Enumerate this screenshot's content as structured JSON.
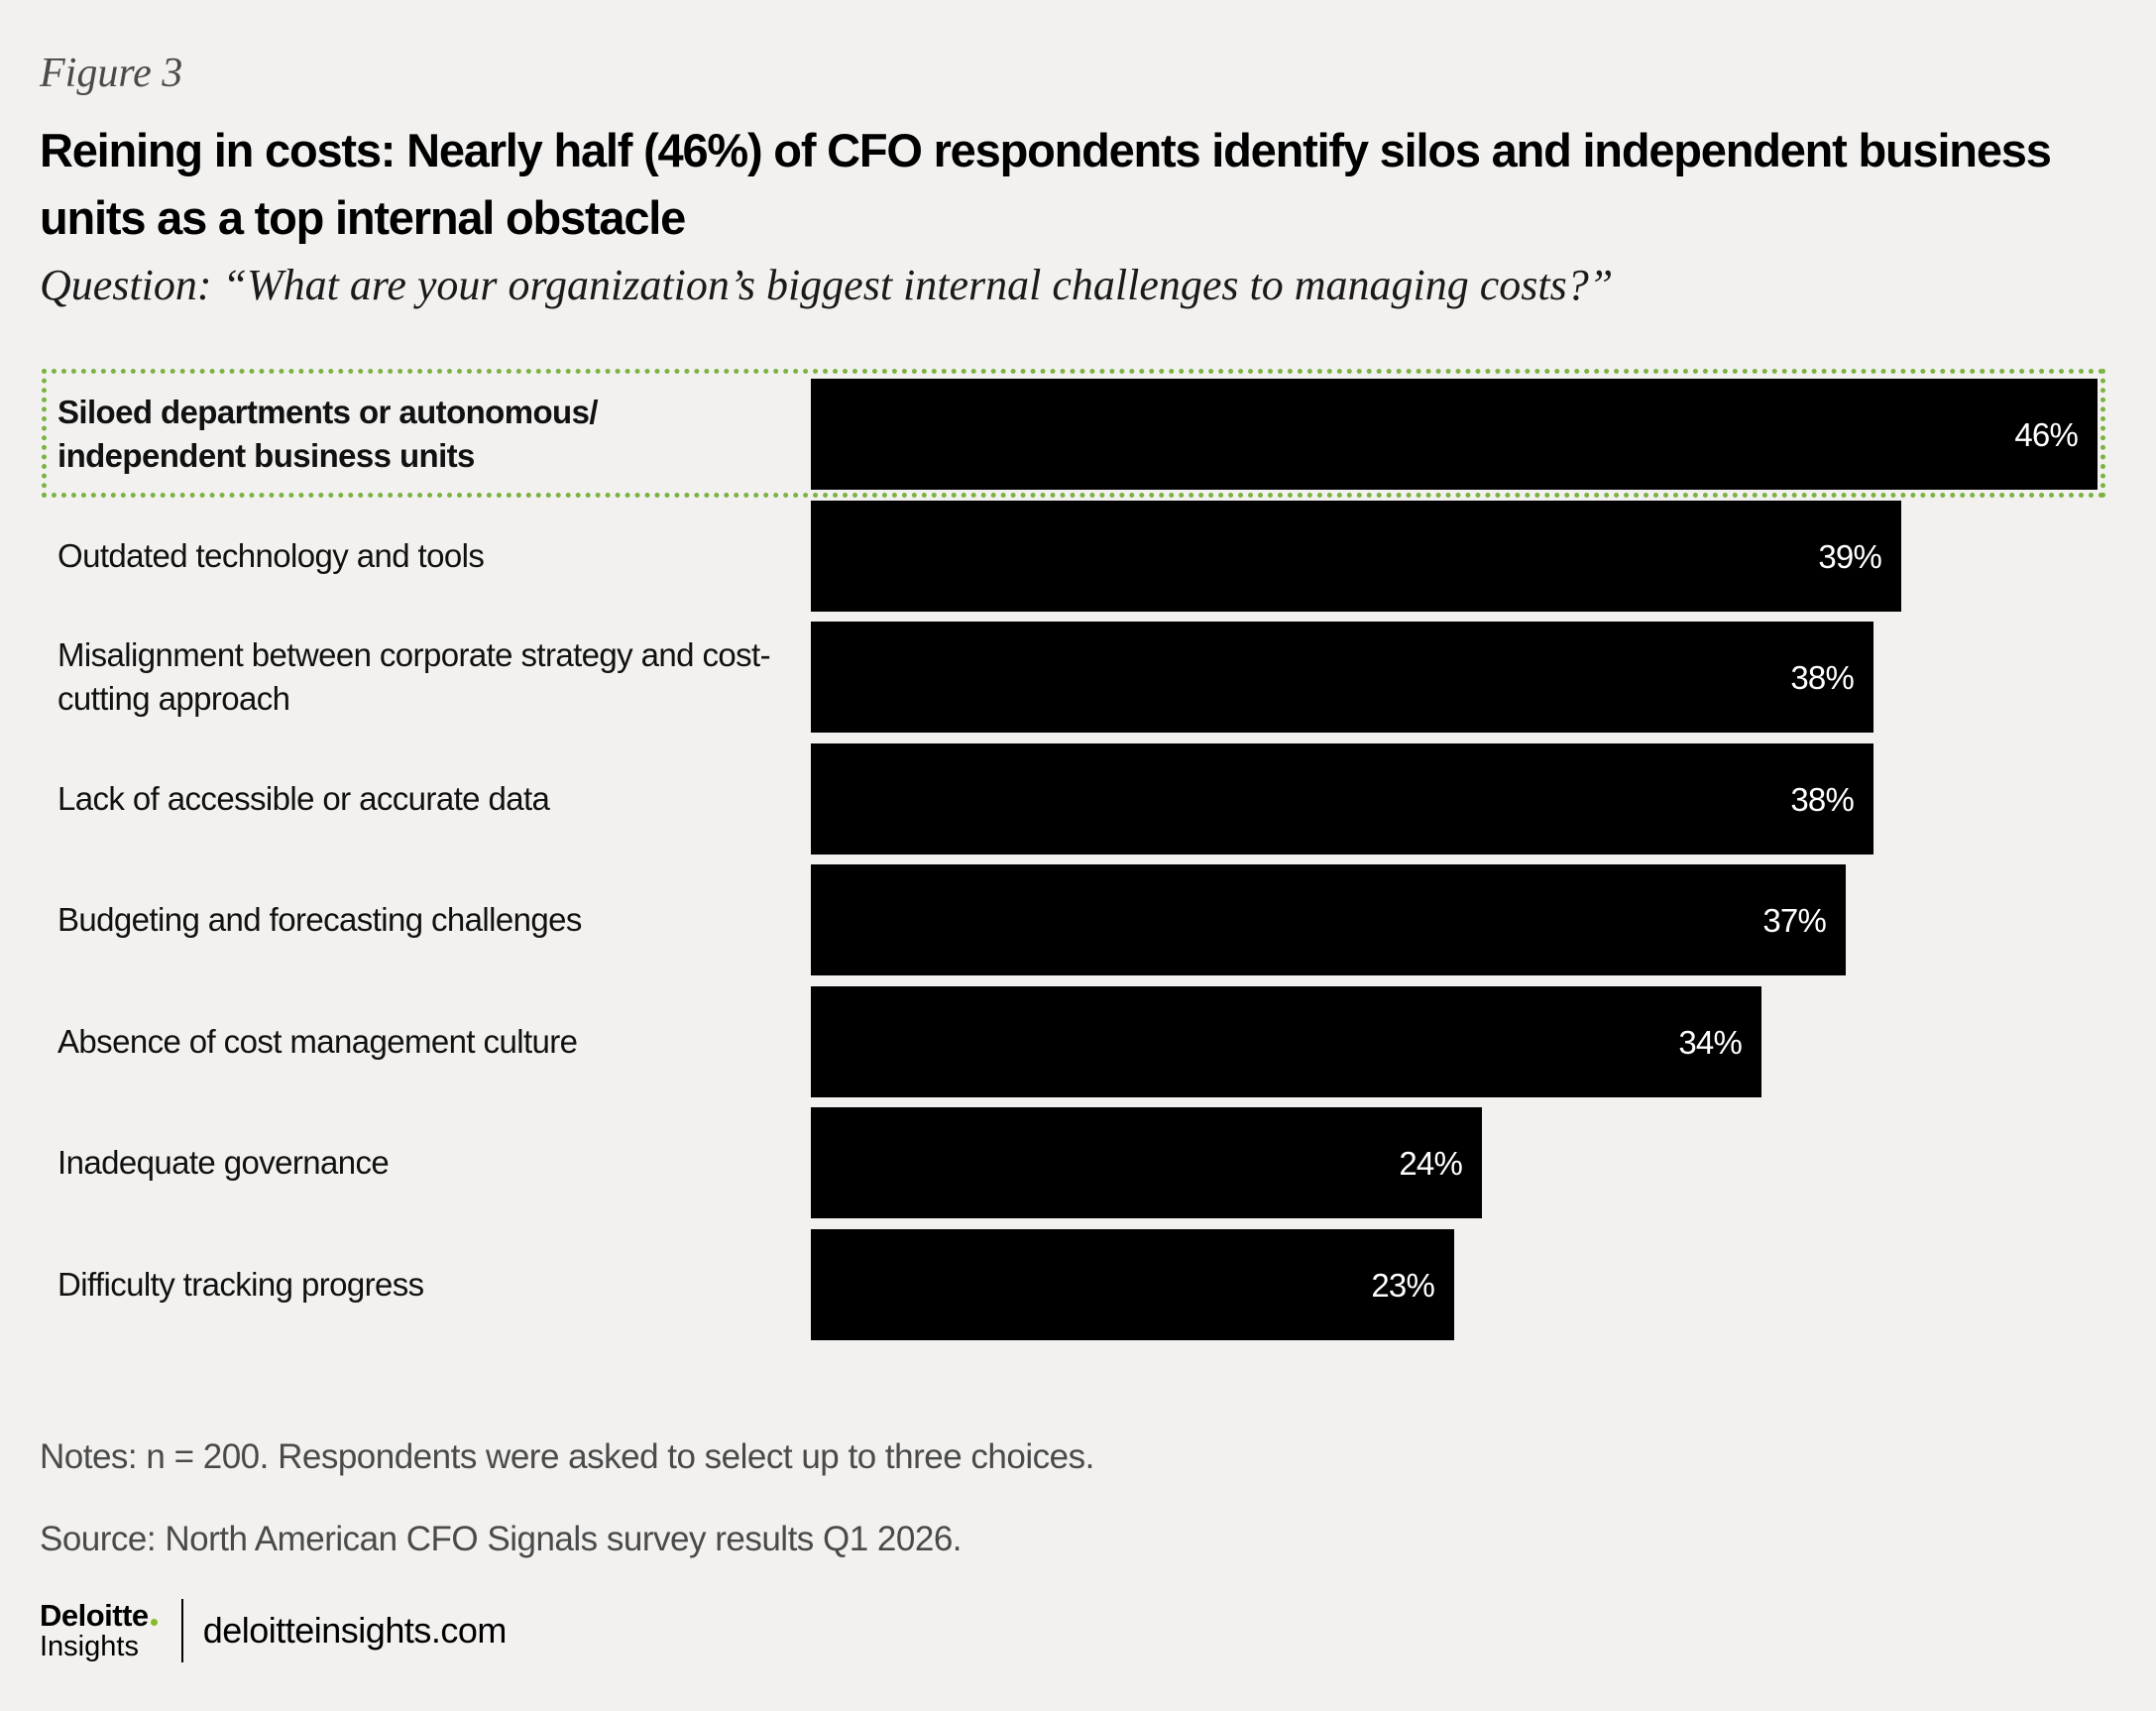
{
  "figure_label": "Figure 3",
  "title": "Reining in costs: Nearly half (46%) of CFO respondents identify silos and independent business units as a top internal obstacle",
  "question": "Question: “What are your organization’s biggest internal challenges to managing costs?”",
  "chart_data": {
    "type": "bar",
    "orientation": "horizontal",
    "categories": [
      "Siloed departments or autonomous/ independent business units",
      "Outdated technology and tools",
      "Misalignment between corporate strategy and cost-cutting approach",
      "Lack of accessible or accurate data",
      "Budgeting and forecasting challenges",
      "Absence of cost management culture",
      "Inadequate governance",
      "Difficulty tracking progress"
    ],
    "category_labels_display": [
      [
        "Siloed departments or autonomous/",
        "independent business units"
      ],
      [
        "Outdated technology and tools"
      ],
      [
        "Misalignment between corporate strategy and cost-",
        "cutting approach"
      ],
      [
        "Lack of accessible or accurate data"
      ],
      [
        "Budgeting and forecasting challenges"
      ],
      [
        "Absence of cost management culture"
      ],
      [
        "Inadequate governance"
      ],
      [
        "Difficulty tracking progress"
      ]
    ],
    "values": [
      46,
      39,
      38,
      38,
      37,
      34,
      24,
      23
    ],
    "value_labels": [
      "46%",
      "39%",
      "38%",
      "38%",
      "37%",
      "34%",
      "24%",
      "23%"
    ],
    "unit": "%",
    "xlim": [
      0,
      46
    ],
    "highlighted_index": 0,
    "bar_color": "#000000",
    "highlight_border_color": "#7bb342",
    "grid": false,
    "legend": "none"
  },
  "notes": "Notes: n = 200. Respondents were asked to select up to three choices.",
  "source": "Source: North American CFO Signals survey results Q1 2026.",
  "footer": {
    "logo_main": "Deloitte",
    "logo_sub": "Insights",
    "url": "deloitteinsights.com"
  },
  "colors": {
    "background": "#f2f1ef",
    "accent_green": "#86bc25"
  }
}
